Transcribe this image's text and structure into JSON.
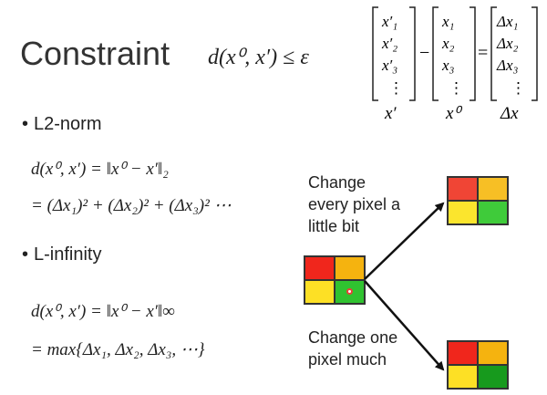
{
  "title": "Constraint",
  "title_formula": "d(x⁰, x′) ≤ ε",
  "vectors": {
    "left": [
      "x′₁",
      "x′₂",
      "x′₃",
      "⋮"
    ],
    "middle": [
      "x₁",
      "x₂",
      "x₃",
      "⋮"
    ],
    "right": [
      "Δx₁",
      "Δx₂",
      "Δx₃",
      "⋮"
    ],
    "minus": "−",
    "equals": "=",
    "labels": [
      "x′",
      "x⁰",
      "Δx"
    ]
  },
  "sections": [
    {
      "bullet": "L2-norm",
      "formula_line1": "d(x⁰, x′) = ‖x⁰ − x′‖₂",
      "formula_line2": "= (Δx₁)² + (Δx₂)² + (Δx₃)² ⋯"
    },
    {
      "bullet": "L-infinity",
      "formula_line1": "d(x⁰, x′) = ‖x⁰ − x′‖∞",
      "formula_line2": "= max{Δx₁, Δx₂, Δx₃, ⋯}"
    }
  ],
  "diagram": {
    "label_top": "Change\nevery pixel a\nlittle bit",
    "label_bottom": "Change one\npixel much",
    "colors": {
      "red": "#f0261c",
      "orange": "#f5b30f",
      "yellow": "#fde025",
      "green": "#30c230",
      "light_red": "#f04535",
      "light_orange": "#f7bf25",
      "light_yellow": "#fbe52d",
      "light_green": "#3fcb3a",
      "dark_green": "#179a1d",
      "cursor": "#e8403a"
    }
  }
}
